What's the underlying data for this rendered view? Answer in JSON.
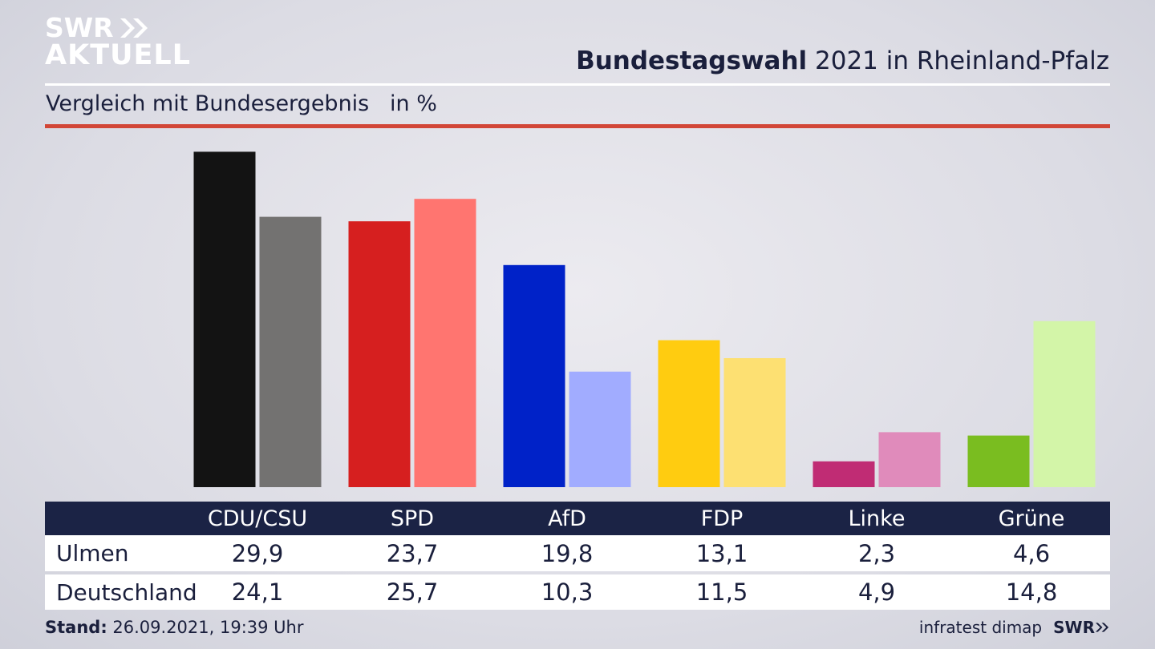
{
  "brand": {
    "line1": "SWR",
    "line2": "AKTUELL"
  },
  "title": {
    "bold": "Bundestagswahl",
    "rest": " 2021 in Rheinland-Pfalz"
  },
  "subtitle": "Vergleich mit Bundesergebnis   in %",
  "footer": {
    "stand_label": "Stand:",
    "stand_value": " 26.09.2021, 19:39 Uhr",
    "source": "infratest dimap",
    "brand": "SWR"
  },
  "chart_data": {
    "type": "bar",
    "categories": [
      "CDU/CSU",
      "SPD",
      "AfD",
      "FDP",
      "Linke",
      "Grüne"
    ],
    "series": [
      {
        "name": "Ulmen",
        "values": [
          29.9,
          23.7,
          19.8,
          13.1,
          2.3,
          4.6
        ],
        "values_text": [
          "29,9",
          "23,7",
          "19,8",
          "13,1",
          "2,3",
          "4,6"
        ]
      },
      {
        "name": "Deutschland",
        "values": [
          24.1,
          25.7,
          10.3,
          11.5,
          4.9,
          14.8
        ],
        "values_text": [
          "24,1",
          "25,7",
          "10,3",
          "11,5",
          "4,9",
          "14,8"
        ]
      }
    ],
    "colors": {
      "Ulmen": [
        "#131313",
        "#d61f1f",
        "#0022c8",
        "#ffcc10",
        "#c02c74",
        "#7abd20"
      ],
      "Deutschland": [
        "#737271",
        "#ff7570",
        "#a1acff",
        "#fde072",
        "#e08bbb",
        "#d3f5a8"
      ]
    },
    "ylim": [
      0,
      30
    ],
    "grid": false,
    "legend": "table-below"
  }
}
